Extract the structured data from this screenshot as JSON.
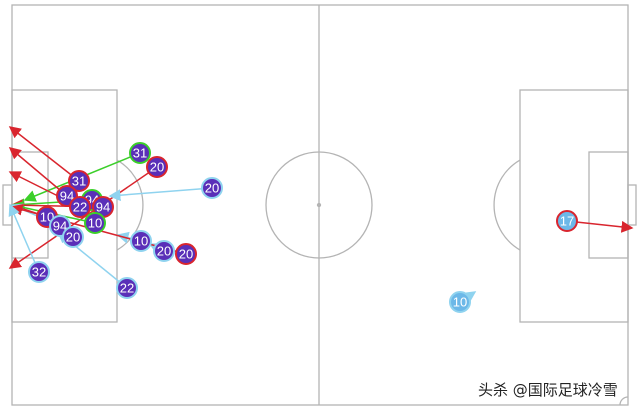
{
  "colors": {
    "pitch_lines": "#b4b4b4",
    "home_fill": "#5a2fb8",
    "away_fill": "#6cb8e8",
    "off_target": "#d9252e",
    "on_target": "#3ccf2a",
    "blocked": "#8fd3ef"
  },
  "shots": [
    {
      "number": "31",
      "team": "home",
      "outcome": "on_target"
    },
    {
      "number": "20",
      "team": "home",
      "outcome": "off_target"
    },
    {
      "number": "31",
      "team": "home",
      "outcome": "off_target"
    },
    {
      "number": "94",
      "team": "home",
      "outcome": "off_target"
    },
    {
      "number": "94",
      "team": "home",
      "outcome": "on_target"
    },
    {
      "number": "94",
      "team": "home",
      "outcome": "off_target"
    },
    {
      "number": "22",
      "team": "home",
      "outcome": "off_target"
    },
    {
      "number": "10",
      "team": "home",
      "outcome": "off_target"
    },
    {
      "number": "10",
      "team": "home",
      "outcome": "on_target"
    },
    {
      "number": "94",
      "team": "home",
      "outcome": "blocked"
    },
    {
      "number": "20",
      "team": "home",
      "outcome": "blocked"
    },
    {
      "number": "20",
      "team": "home",
      "outcome": "blocked"
    },
    {
      "number": "10",
      "team": "home",
      "outcome": "blocked"
    },
    {
      "number": "20",
      "team": "home",
      "outcome": "blocked"
    },
    {
      "number": "20",
      "team": "home",
      "outcome": "off_target"
    },
    {
      "number": "32",
      "team": "home",
      "outcome": "blocked"
    },
    {
      "number": "22",
      "team": "home",
      "outcome": "blocked"
    },
    {
      "number": "17",
      "team": "away",
      "outcome": "off_target"
    },
    {
      "number": "10",
      "team": "away",
      "outcome": "blocked"
    }
  ],
  "watermark": "头杀 @国际足球冷雪"
}
